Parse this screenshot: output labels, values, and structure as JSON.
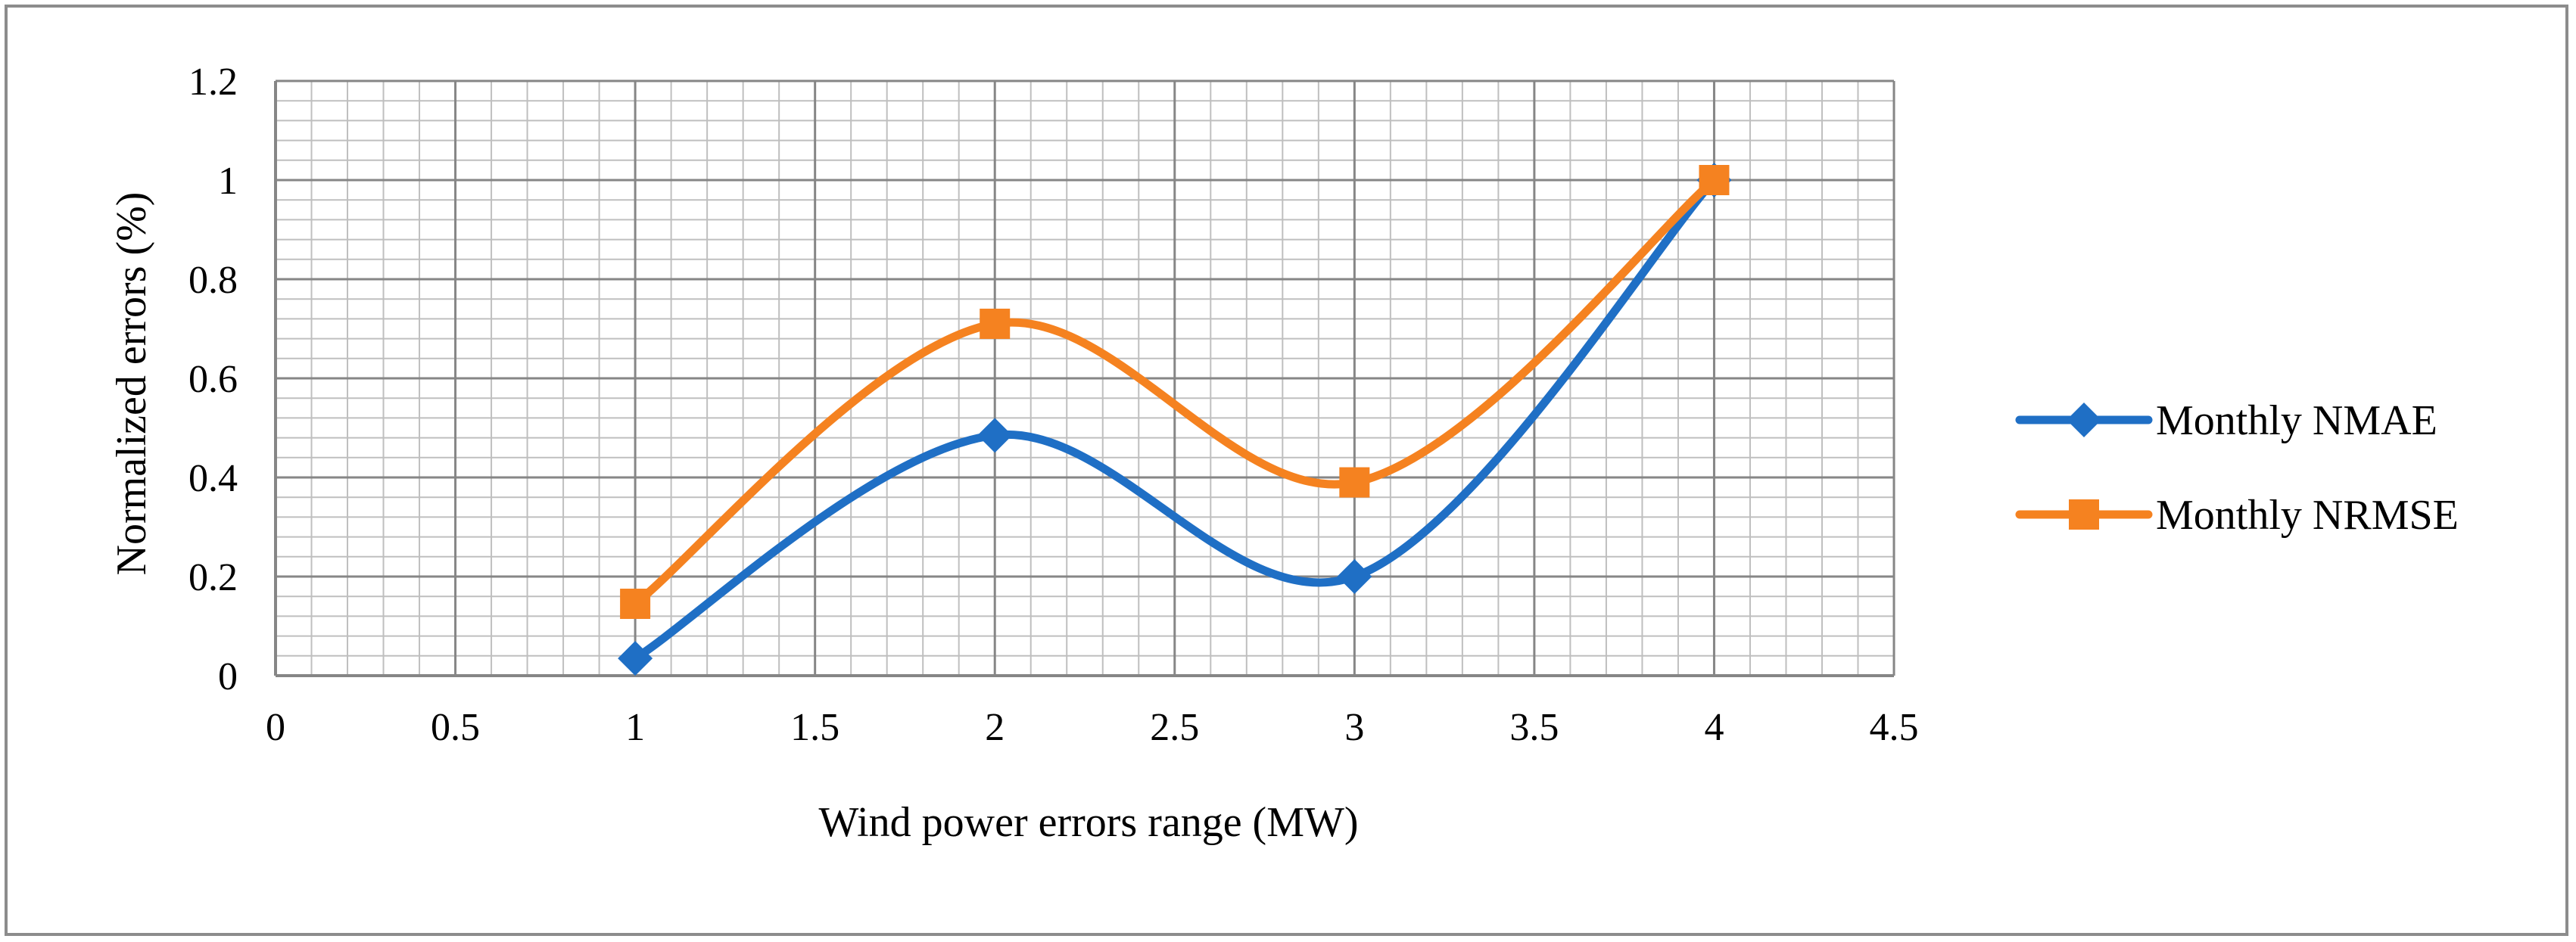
{
  "chart_data": {
    "type": "line",
    "smooth": true,
    "title": "",
    "xlabel": "Wind power errors range (MW)",
    "ylabel": "Normalized errors (%)",
    "xlim": [
      0,
      4.5
    ],
    "ylim": [
      0,
      1.2
    ],
    "x_ticks": [
      0,
      0.5,
      1,
      1.5,
      2,
      2.5,
      3,
      3.5,
      4,
      4.5
    ],
    "x_tick_labels": [
      "0",
      "0.5",
      "1",
      "1.5",
      "2",
      "2.5",
      "3",
      "3.5",
      "4",
      "4.5"
    ],
    "y_ticks": [
      0,
      0.2,
      0.4,
      0.6,
      0.8,
      1,
      1.2
    ],
    "y_tick_labels": [
      "0",
      "0.2",
      "0.4",
      "0.6",
      "0.8",
      "1",
      "1.2"
    ],
    "grid": true,
    "minor_grid": true,
    "legend_position": "right",
    "series": [
      {
        "name": "Monthly NMAE",
        "marker": "diamond",
        "color": "#1f6fc5",
        "x": [
          1,
          2,
          3,
          4
        ],
        "values": [
          0.035,
          0.485,
          0.2,
          1.0
        ]
      },
      {
        "name": "Monthly NRMSE",
        "marker": "square",
        "color": "#f58220",
        "x": [
          1,
          2,
          3,
          4
        ],
        "values": [
          0.145,
          0.71,
          0.39,
          1.0
        ]
      }
    ]
  }
}
